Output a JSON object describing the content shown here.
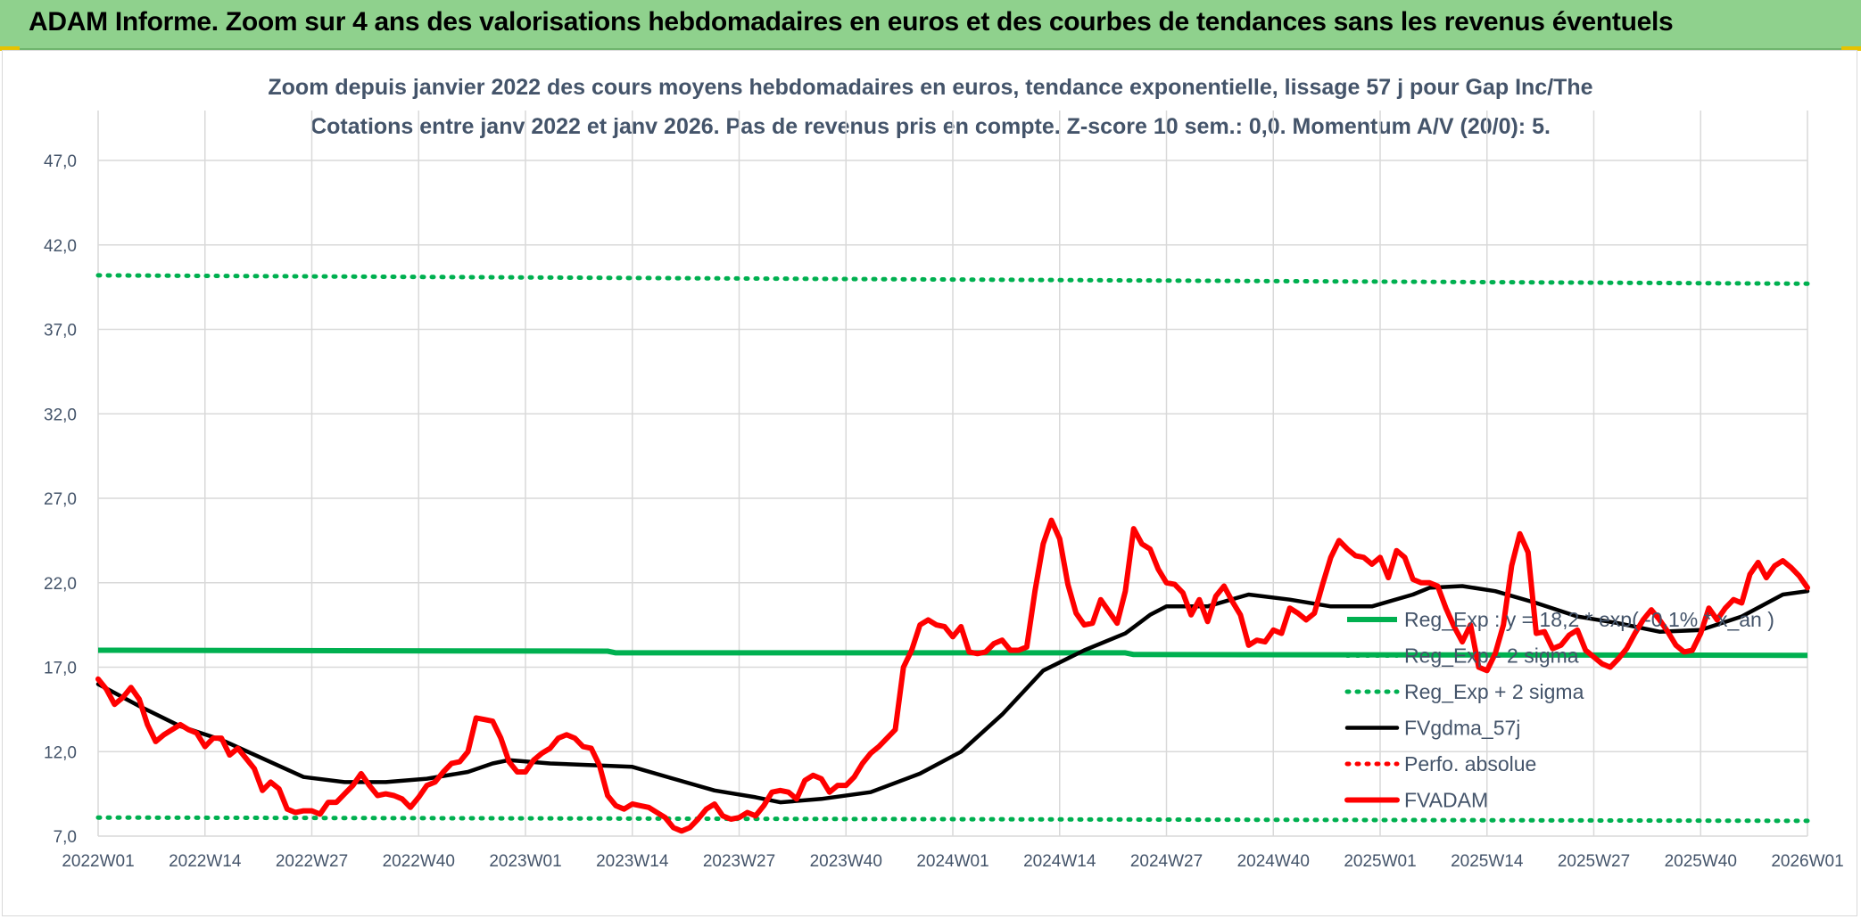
{
  "header": {
    "title": "ADAM Informe. Zoom sur 4 ans des valorisations hebdomadaires en euros et des courbes de tendances sans les revenus éventuels"
  },
  "chart_data": {
    "type": "line",
    "title": "Zoom depuis janvier 2022 des cours moyens hebdomadaires en euros, tendance exponentielle, lissage 57 j pour Gap Inc/The",
    "subtitle": "Cotations entre janv 2022 et janv 2026. Pas de revenus pris en compte. Z-score 10 sem.: 0,0. Momentum A/V (20/0): 5.",
    "xlabel": "",
    "ylabel": "",
    "ylim": [
      7.0,
      47.0
    ],
    "y_ticks": [
      "7,0",
      "12,0",
      "17,0",
      "22,0",
      "27,0",
      "32,0",
      "37,0",
      "42,0",
      "47,0"
    ],
    "x_ticks": [
      "2022W01",
      "2022W14",
      "2022W27",
      "2022W40",
      "2023W01",
      "2023W14",
      "2023W27",
      "2023W40",
      "2024W01",
      "2024W14",
      "2024W27",
      "2024W40",
      "2025W01",
      "2025W14",
      "2025W27",
      "2025W40",
      "2026W01"
    ],
    "x_range_weeks": [
      0,
      208
    ],
    "grid": true,
    "legend_position": "right",
    "series": [
      {
        "name": "Reg_Exp : y = 18,2 * exp( -0,1% * x_an )",
        "color": "#00b050",
        "style": "solid",
        "points": [
          [
            0,
            18.0
          ],
          [
            62,
            17.95
          ],
          [
            63,
            17.85
          ],
          [
            125,
            17.85
          ],
          [
            126,
            17.75
          ],
          [
            208,
            17.7
          ]
        ]
      },
      {
        "name": "Reg_Exp - 2 sigma",
        "color": "#00b050",
        "style": "dotted",
        "points": [
          [
            0,
            8.1
          ],
          [
            208,
            7.9
          ]
        ]
      },
      {
        "name": "Reg_Exp + 2 sigma",
        "color": "#00b050",
        "style": "dotted",
        "points": [
          [
            0,
            40.2
          ],
          [
            208,
            39.7
          ]
        ]
      },
      {
        "name": "FVgdma_57j",
        "color": "#000000",
        "style": "solid",
        "points": [
          [
            0,
            16.0
          ],
          [
            5,
            14.7
          ],
          [
            10,
            13.5
          ],
          [
            15,
            12.7
          ],
          [
            20,
            11.6
          ],
          [
            25,
            10.5
          ],
          [
            30,
            10.2
          ],
          [
            35,
            10.2
          ],
          [
            40,
            10.4
          ],
          [
            45,
            10.8
          ],
          [
            48,
            11.3
          ],
          [
            50,
            11.5
          ],
          [
            55,
            11.3
          ],
          [
            60,
            11.2
          ],
          [
            65,
            11.1
          ],
          [
            70,
            10.4
          ],
          [
            75,
            9.7
          ],
          [
            80,
            9.3
          ],
          [
            83,
            9.0
          ],
          [
            88,
            9.2
          ],
          [
            94,
            9.6
          ],
          [
            100,
            10.7
          ],
          [
            105,
            12.0
          ],
          [
            110,
            14.2
          ],
          [
            115,
            16.8
          ],
          [
            120,
            18.0
          ],
          [
            125,
            19.0
          ],
          [
            128,
            20.1
          ],
          [
            130,
            20.6
          ],
          [
            135,
            20.6
          ],
          [
            140,
            21.3
          ],
          [
            145,
            21.0
          ],
          [
            150,
            20.6
          ],
          [
            155,
            20.6
          ],
          [
            160,
            21.3
          ],
          [
            162,
            21.7
          ],
          [
            166,
            21.8
          ],
          [
            170,
            21.5
          ],
          [
            175,
            20.8
          ],
          [
            180,
            20.0
          ],
          [
            185,
            19.6
          ],
          [
            190,
            19.1
          ],
          [
            195,
            19.2
          ],
          [
            200,
            20.0
          ],
          [
            205,
            21.3
          ],
          [
            208,
            21.5
          ]
        ]
      },
      {
        "name": "Perfo. absolue",
        "color": "#ff0000",
        "style": "dotted",
        "points": []
      },
      {
        "name": "FVADAM",
        "color": "#ff0000",
        "style": "solid",
        "points": [
          [
            0,
            16.3
          ],
          [
            1,
            15.7
          ],
          [
            2,
            14.8
          ],
          [
            3,
            15.2
          ],
          [
            4,
            15.8
          ],
          [
            5,
            15.1
          ],
          [
            6,
            13.6
          ],
          [
            7,
            12.6
          ],
          [
            8,
            13.0
          ],
          [
            9,
            13.3
          ],
          [
            10,
            13.6
          ],
          [
            11,
            13.3
          ],
          [
            12,
            13.1
          ],
          [
            13,
            12.3
          ],
          [
            14,
            12.8
          ],
          [
            15,
            12.8
          ],
          [
            16,
            11.8
          ],
          [
            17,
            12.2
          ],
          [
            18,
            11.6
          ],
          [
            19,
            11.0
          ],
          [
            20,
            9.7
          ],
          [
            21,
            10.2
          ],
          [
            22,
            9.8
          ],
          [
            23,
            8.6
          ],
          [
            24,
            8.4
          ],
          [
            25,
            8.5
          ],
          [
            26,
            8.5
          ],
          [
            27,
            8.3
          ],
          [
            28,
            9.0
          ],
          [
            29,
            9.0
          ],
          [
            30,
            9.5
          ],
          [
            31,
            10.0
          ],
          [
            32,
            10.7
          ],
          [
            33,
            10.0
          ],
          [
            34,
            9.4
          ],
          [
            35,
            9.5
          ],
          [
            36,
            9.4
          ],
          [
            37,
            9.2
          ],
          [
            38,
            8.7
          ],
          [
            39,
            9.3
          ],
          [
            40,
            10.0
          ],
          [
            41,
            10.2
          ],
          [
            42,
            10.8
          ],
          [
            43,
            11.3
          ],
          [
            44,
            11.4
          ],
          [
            45,
            12.0
          ],
          [
            46,
            14.0
          ],
          [
            47,
            13.9
          ],
          [
            48,
            13.8
          ],
          [
            49,
            12.8
          ],
          [
            50,
            11.4
          ],
          [
            51,
            10.8
          ],
          [
            52,
            10.8
          ],
          [
            53,
            11.5
          ],
          [
            54,
            11.9
          ],
          [
            55,
            12.2
          ],
          [
            56,
            12.8
          ],
          [
            57,
            13.0
          ],
          [
            58,
            12.8
          ],
          [
            59,
            12.3
          ],
          [
            60,
            12.2
          ],
          [
            61,
            11.2
          ],
          [
            62,
            9.4
          ],
          [
            63,
            8.8
          ],
          [
            64,
            8.6
          ],
          [
            65,
            8.9
          ],
          [
            66,
            8.8
          ],
          [
            67,
            8.7
          ],
          [
            68,
            8.4
          ],
          [
            69,
            8.1
          ],
          [
            70,
            7.5
          ],
          [
            71,
            7.3
          ],
          [
            72,
            7.5
          ],
          [
            73,
            8.0
          ],
          [
            74,
            8.6
          ],
          [
            75,
            8.9
          ],
          [
            76,
            8.2
          ],
          [
            77,
            8.0
          ],
          [
            78,
            8.1
          ],
          [
            79,
            8.4
          ],
          [
            80,
            8.2
          ],
          [
            81,
            8.8
          ],
          [
            82,
            9.6
          ],
          [
            83,
            9.7
          ],
          [
            84,
            9.6
          ],
          [
            85,
            9.2
          ],
          [
            86,
            10.3
          ],
          [
            87,
            10.6
          ],
          [
            88,
            10.4
          ],
          [
            89,
            9.6
          ],
          [
            90,
            10.0
          ],
          [
            91,
            10.0
          ],
          [
            92,
            10.5
          ],
          [
            93,
            11.3
          ],
          [
            94,
            11.9
          ],
          [
            95,
            12.3
          ],
          [
            96,
            12.8
          ],
          [
            97,
            13.3
          ],
          [
            98,
            17.0
          ],
          [
            99,
            18.0
          ],
          [
            100,
            19.5
          ],
          [
            101,
            19.8
          ],
          [
            102,
            19.5
          ],
          [
            103,
            19.4
          ],
          [
            104,
            18.8
          ],
          [
            105,
            19.4
          ],
          [
            106,
            17.9
          ],
          [
            107,
            17.8
          ],
          [
            108,
            17.9
          ],
          [
            109,
            18.4
          ],
          [
            110,
            18.6
          ],
          [
            111,
            18.0
          ],
          [
            112,
            18.0
          ],
          [
            113,
            18.2
          ],
          [
            114,
            21.5
          ],
          [
            115,
            24.3
          ],
          [
            116,
            25.7
          ],
          [
            117,
            24.6
          ],
          [
            118,
            21.9
          ],
          [
            119,
            20.2
          ],
          [
            120,
            19.5
          ],
          [
            121,
            19.6
          ],
          [
            122,
            21.0
          ],
          [
            123,
            20.3
          ],
          [
            124,
            19.6
          ],
          [
            125,
            21.5
          ],
          [
            126,
            25.2
          ],
          [
            127,
            24.3
          ],
          [
            128,
            24.0
          ],
          [
            129,
            22.8
          ],
          [
            130,
            22.0
          ],
          [
            131,
            21.9
          ],
          [
            132,
            21.4
          ],
          [
            133,
            20.1
          ],
          [
            134,
            21.0
          ],
          [
            135,
            19.7
          ],
          [
            136,
            21.2
          ],
          [
            137,
            21.8
          ],
          [
            138,
            20.9
          ],
          [
            139,
            20.1
          ],
          [
            140,
            18.3
          ],
          [
            141,
            18.6
          ],
          [
            142,
            18.5
          ],
          [
            143,
            19.2
          ],
          [
            144,
            19.0
          ],
          [
            145,
            20.5
          ],
          [
            146,
            20.2
          ],
          [
            147,
            19.8
          ],
          [
            148,
            20.2
          ],
          [
            149,
            21.9
          ],
          [
            150,
            23.5
          ],
          [
            151,
            24.5
          ],
          [
            152,
            24.0
          ],
          [
            153,
            23.6
          ],
          [
            154,
            23.5
          ],
          [
            155,
            23.1
          ],
          [
            156,
            23.5
          ],
          [
            157,
            22.3
          ],
          [
            158,
            23.9
          ],
          [
            159,
            23.5
          ],
          [
            160,
            22.2
          ],
          [
            161,
            22.0
          ],
          [
            162,
            22.0
          ],
          [
            163,
            21.8
          ],
          [
            164,
            20.5
          ],
          [
            165,
            19.4
          ],
          [
            166,
            18.5
          ],
          [
            167,
            19.5
          ],
          [
            168,
            17.0
          ],
          [
            169,
            16.8
          ],
          [
            170,
            17.8
          ],
          [
            171,
            19.5
          ],
          [
            172,
            23.0
          ],
          [
            173,
            24.9
          ],
          [
            174,
            23.8
          ],
          [
            175,
            19.0
          ],
          [
            176,
            19.1
          ],
          [
            177,
            18.1
          ],
          [
            178,
            18.3
          ],
          [
            179,
            18.9
          ],
          [
            180,
            19.2
          ],
          [
            181,
            18.0
          ],
          [
            182,
            17.6
          ],
          [
            183,
            17.2
          ],
          [
            184,
            17.0
          ],
          [
            185,
            17.5
          ],
          [
            186,
            18.1
          ],
          [
            187,
            19.0
          ],
          [
            188,
            19.8
          ],
          [
            189,
            20.4
          ],
          [
            190,
            19.8
          ],
          [
            191,
            19.1
          ],
          [
            192,
            18.3
          ],
          [
            193,
            17.9
          ],
          [
            194,
            18.0
          ],
          [
            195,
            19.0
          ],
          [
            196,
            20.5
          ],
          [
            197,
            19.8
          ],
          [
            198,
            20.5
          ],
          [
            199,
            21.0
          ],
          [
            200,
            20.8
          ],
          [
            201,
            22.5
          ],
          [
            202,
            23.2
          ],
          [
            203,
            22.3
          ],
          [
            204,
            23.0
          ],
          [
            205,
            23.3
          ],
          [
            206,
            22.9
          ],
          [
            207,
            22.4
          ],
          [
            208,
            21.7
          ]
        ]
      }
    ]
  }
}
